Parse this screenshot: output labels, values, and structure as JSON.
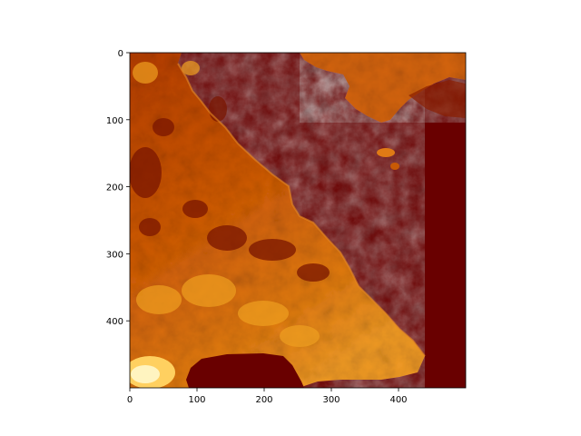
{
  "chart_data": {
    "type": "heatmap",
    "title": "",
    "xlabel": "",
    "ylabel": "",
    "xlim": [
      0,
      500
    ],
    "ylim": [
      500,
      0
    ],
    "x_ticks": [
      0,
      100,
      200,
      300,
      400
    ],
    "y_ticks": [
      0,
      100,
      200,
      300,
      400
    ],
    "x_tick_labels": [
      "0",
      "100",
      "200",
      "300",
      "400"
    ],
    "y_tick_labels": [
      "0",
      "100",
      "200",
      "300",
      "400"
    ],
    "image_shape": [
      500,
      500
    ],
    "colormap": "afmhot",
    "colorbar": false,
    "description_regions": "land (bright orange) on left and bottom-left; sea (dark red) on upper-right; dark lake near bottom center"
  },
  "colors": {
    "sea": "#690000",
    "land_mid": "#c04a00",
    "land_bright": "#f0a020",
    "land_dark": "#7a1500",
    "highlight": "#fff4c0",
    "axis": "#000000"
  }
}
